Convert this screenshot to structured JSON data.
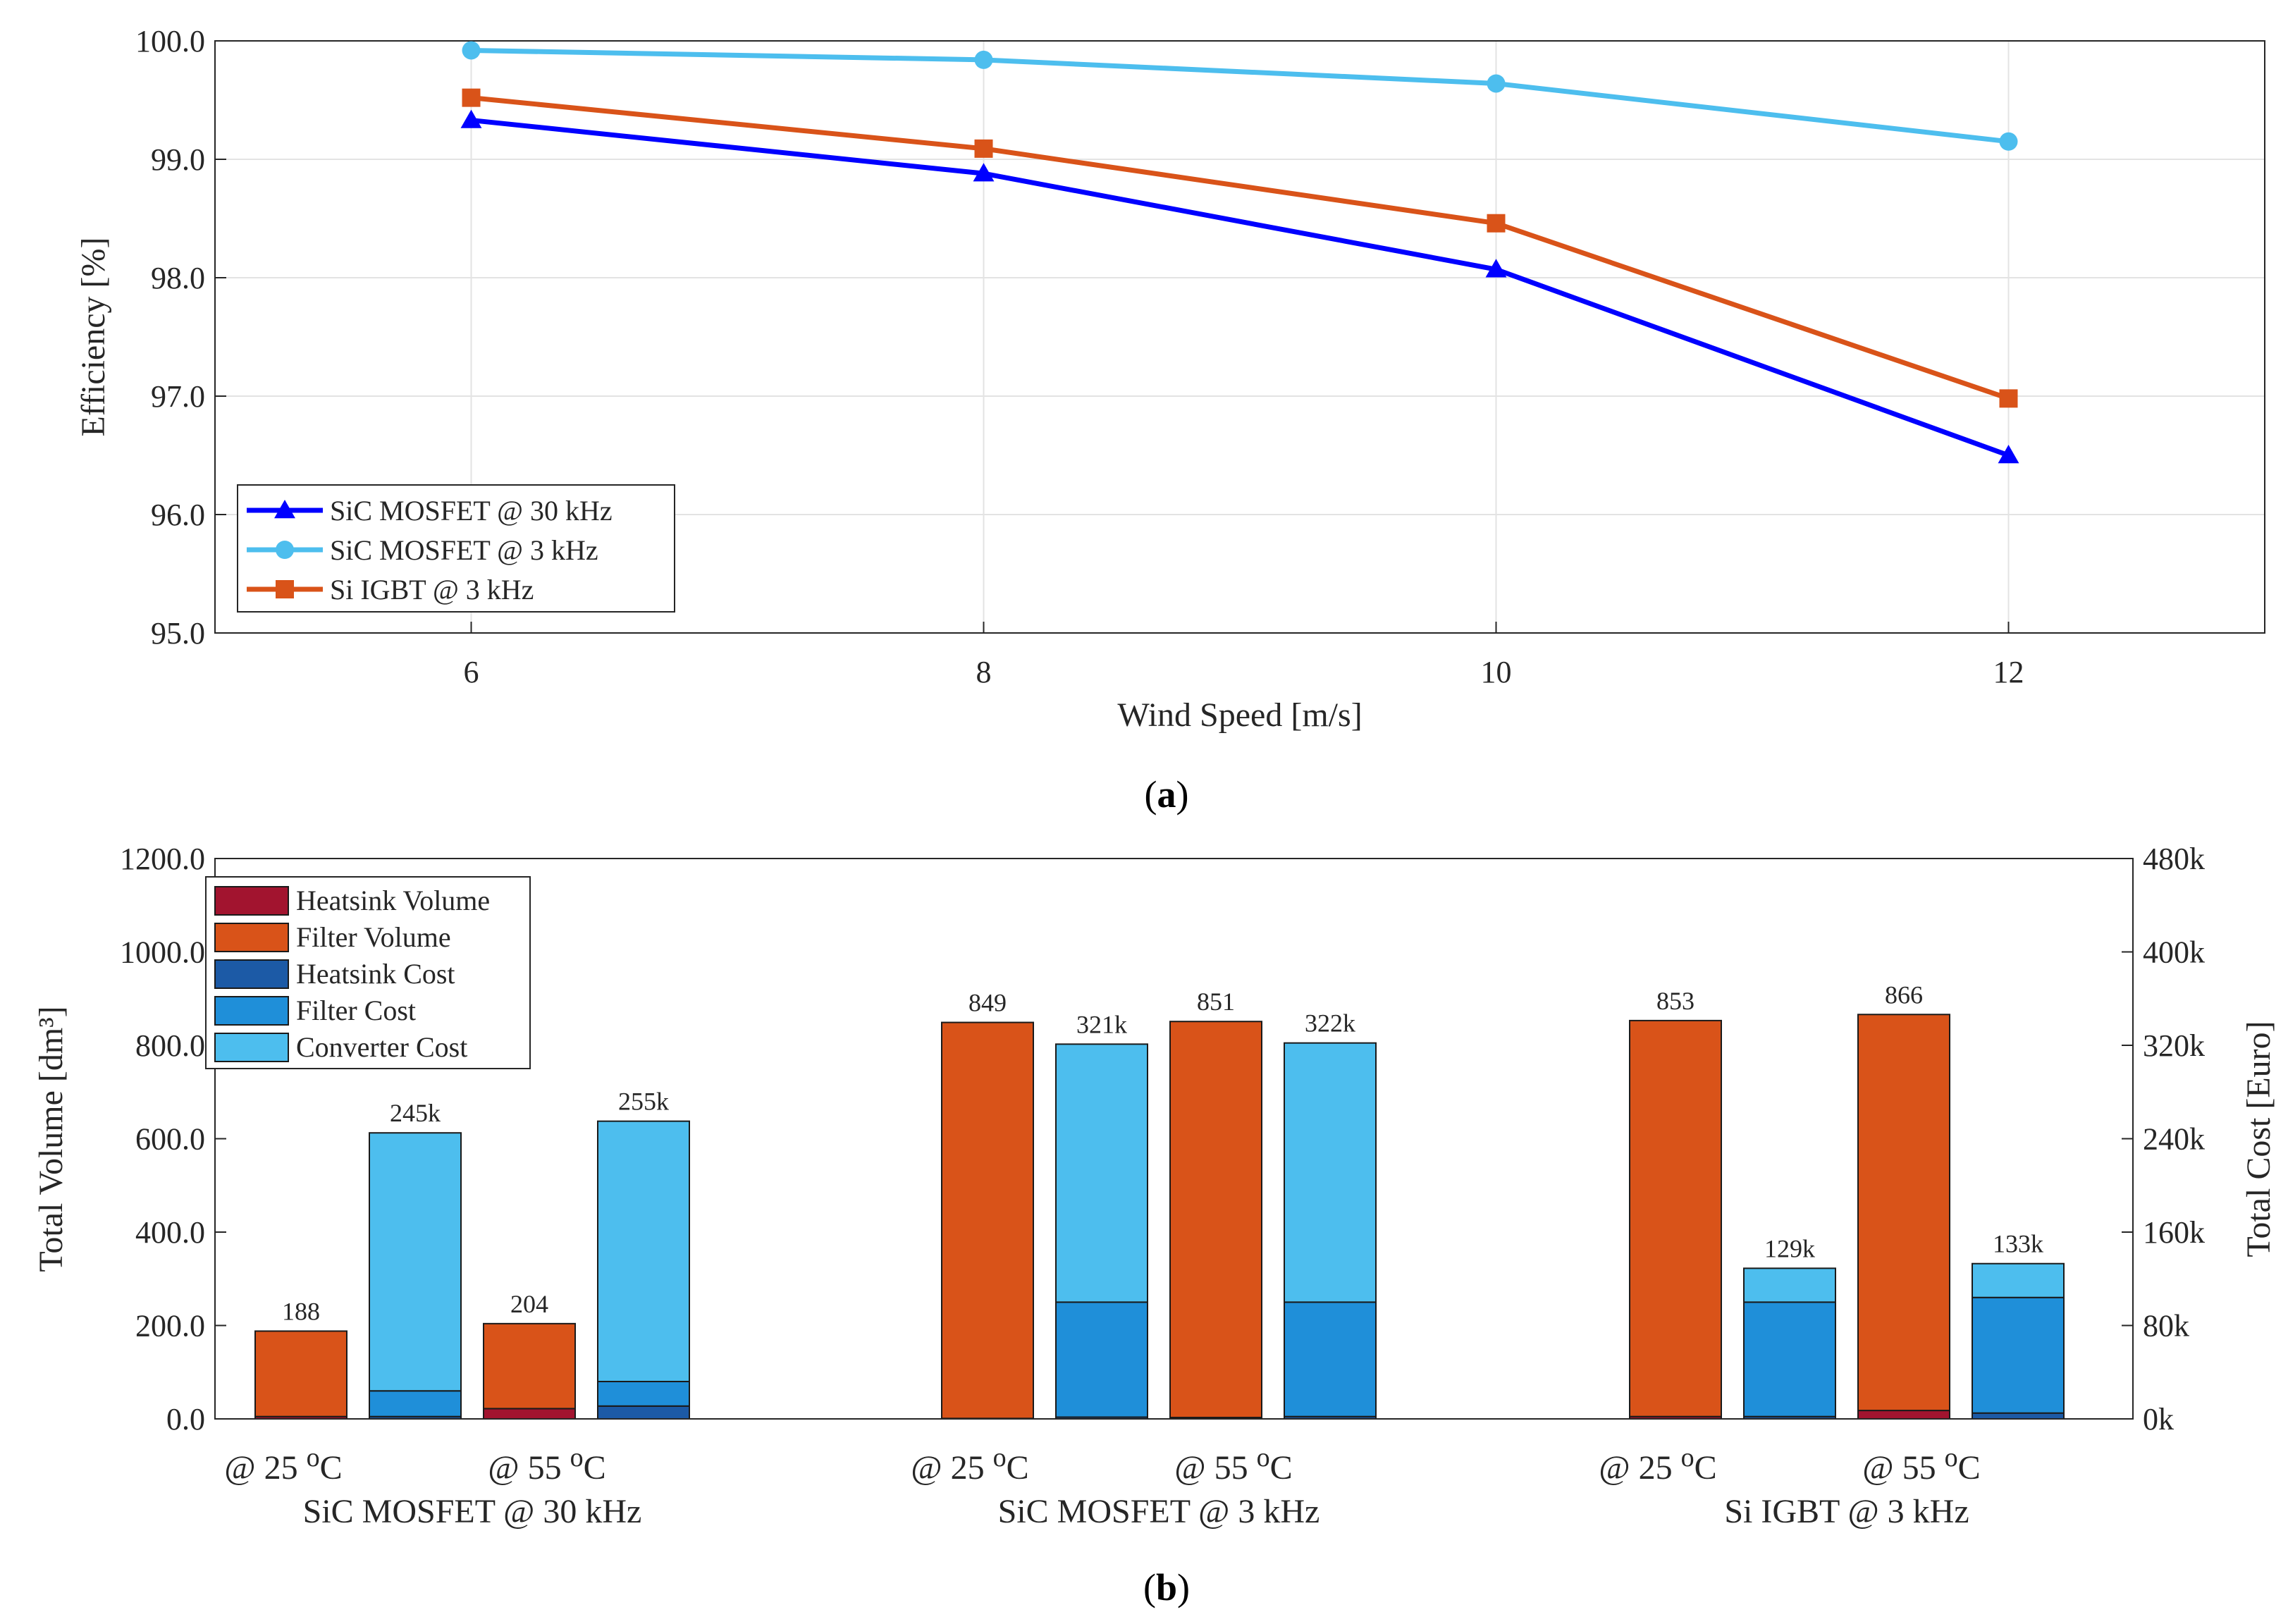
{
  "chart_data": [
    {
      "id": "a",
      "type": "line",
      "caption": "a",
      "xlabel": "Wind Speed [m/s]",
      "ylabel": "Efficiency [%]",
      "x": [
        6,
        8,
        10,
        12
      ],
      "x_ticks": [
        "6",
        "8",
        "10",
        "12"
      ],
      "xlim": [
        5,
        13
      ],
      "ylim": [
        95,
        100
      ],
      "y_ticks": [
        "95.0",
        "96.0",
        "97.0",
        "98.0",
        "99.0",
        "100.0"
      ],
      "grid": true,
      "legend_position": "bottom-left",
      "series": [
        {
          "name": "SiC MOSFET @ 30 kHz",
          "marker": "triangle",
          "color": "#0000ff",
          "values": [
            99.33,
            98.88,
            98.07,
            96.5
          ]
        },
        {
          "name": "SiC MOSFET @ 3 kHz",
          "marker": "circle",
          "color": "#4dbeee",
          "values": [
            99.92,
            99.84,
            99.64,
            99.15
          ]
        },
        {
          "name": "Si IGBT @ 3 kHz",
          "marker": "square",
          "color": "#d95319",
          "values": [
            99.52,
            99.09,
            98.46,
            96.98
          ]
        }
      ]
    },
    {
      "id": "b",
      "type": "bar",
      "caption": "b",
      "ylabel_left": "Total Volume [dm³]",
      "ylabel_right": "Total Cost [Euro]",
      "ylim_left": [
        0,
        1200
      ],
      "ylim_right": [
        0,
        480000
      ],
      "y_ticks_left": [
        "0.0",
        "200.0",
        "400.0",
        "600.0",
        "800.0",
        "1000.0",
        "1200.0"
      ],
      "y_ticks_right": [
        "0k",
        "80k",
        "160k",
        "240k",
        "320k",
        "400k",
        "480k"
      ],
      "legend_position": "top-left",
      "colors": {
        "heatsink_volume": "#a2142f",
        "filter_volume": "#d95319",
        "heatsink_cost": "#1c5aa6",
        "filter_cost": "#1f8fd9",
        "converter_cost": "#4dbeee"
      },
      "legend": [
        "Heatsink Volume",
        "Filter Volume",
        "Heatsink Cost",
        "Filter Cost",
        "Converter Cost"
      ],
      "groups": [
        {
          "name": "SiC MOSFET @ 30 kHz",
          "temps": [
            "@ 25 °C",
            "@ 55 °C"
          ],
          "bars": [
            {
              "kind": "volume",
              "label": "188",
              "heatsink_volume": 5,
              "filter_volume": 183
            },
            {
              "kind": "cost",
              "label": "245k",
              "heatsink_cost": 2000,
              "filter_cost": 22000,
              "converter_cost": 221000
            },
            {
              "kind": "volume",
              "label": "204",
              "heatsink_volume": 22,
              "filter_volume": 182
            },
            {
              "kind": "cost",
              "label": "255k",
              "heatsink_cost": 11000,
              "filter_cost": 21000,
              "converter_cost": 223000
            }
          ]
        },
        {
          "name": "SiC MOSFET @ 3 kHz",
          "temps": [
            "@ 25 °C",
            "@ 55 °C"
          ],
          "bars": [
            {
              "kind": "volume",
              "label": "849",
              "heatsink_volume": 1,
              "filter_volume": 848
            },
            {
              "kind": "cost",
              "label": "321k",
              "heatsink_cost": 1500,
              "filter_cost": 98500,
              "converter_cost": 221000
            },
            {
              "kind": "volume",
              "label": "851",
              "heatsink_volume": 3,
              "filter_volume": 848
            },
            {
              "kind": "cost",
              "label": "322k",
              "heatsink_cost": 2000,
              "filter_cost": 98000,
              "converter_cost": 222000
            }
          ]
        },
        {
          "name": "Si IGBT @ 3 kHz",
          "temps": [
            "@ 25 °C",
            "@ 55 °C"
          ],
          "bars": [
            {
              "kind": "volume",
              "label": "853",
              "heatsink_volume": 5,
              "filter_volume": 848
            },
            {
              "kind": "cost",
              "label": "129k",
              "heatsink_cost": 2000,
              "filter_cost": 98000,
              "converter_cost": 29000
            },
            {
              "kind": "volume",
              "label": "866",
              "heatsink_volume": 18,
              "filter_volume": 848
            },
            {
              "kind": "cost",
              "label": "133k",
              "heatsink_cost": 5000,
              "filter_cost": 99000,
              "converter_cost": 29000
            }
          ]
        }
      ]
    }
  ]
}
